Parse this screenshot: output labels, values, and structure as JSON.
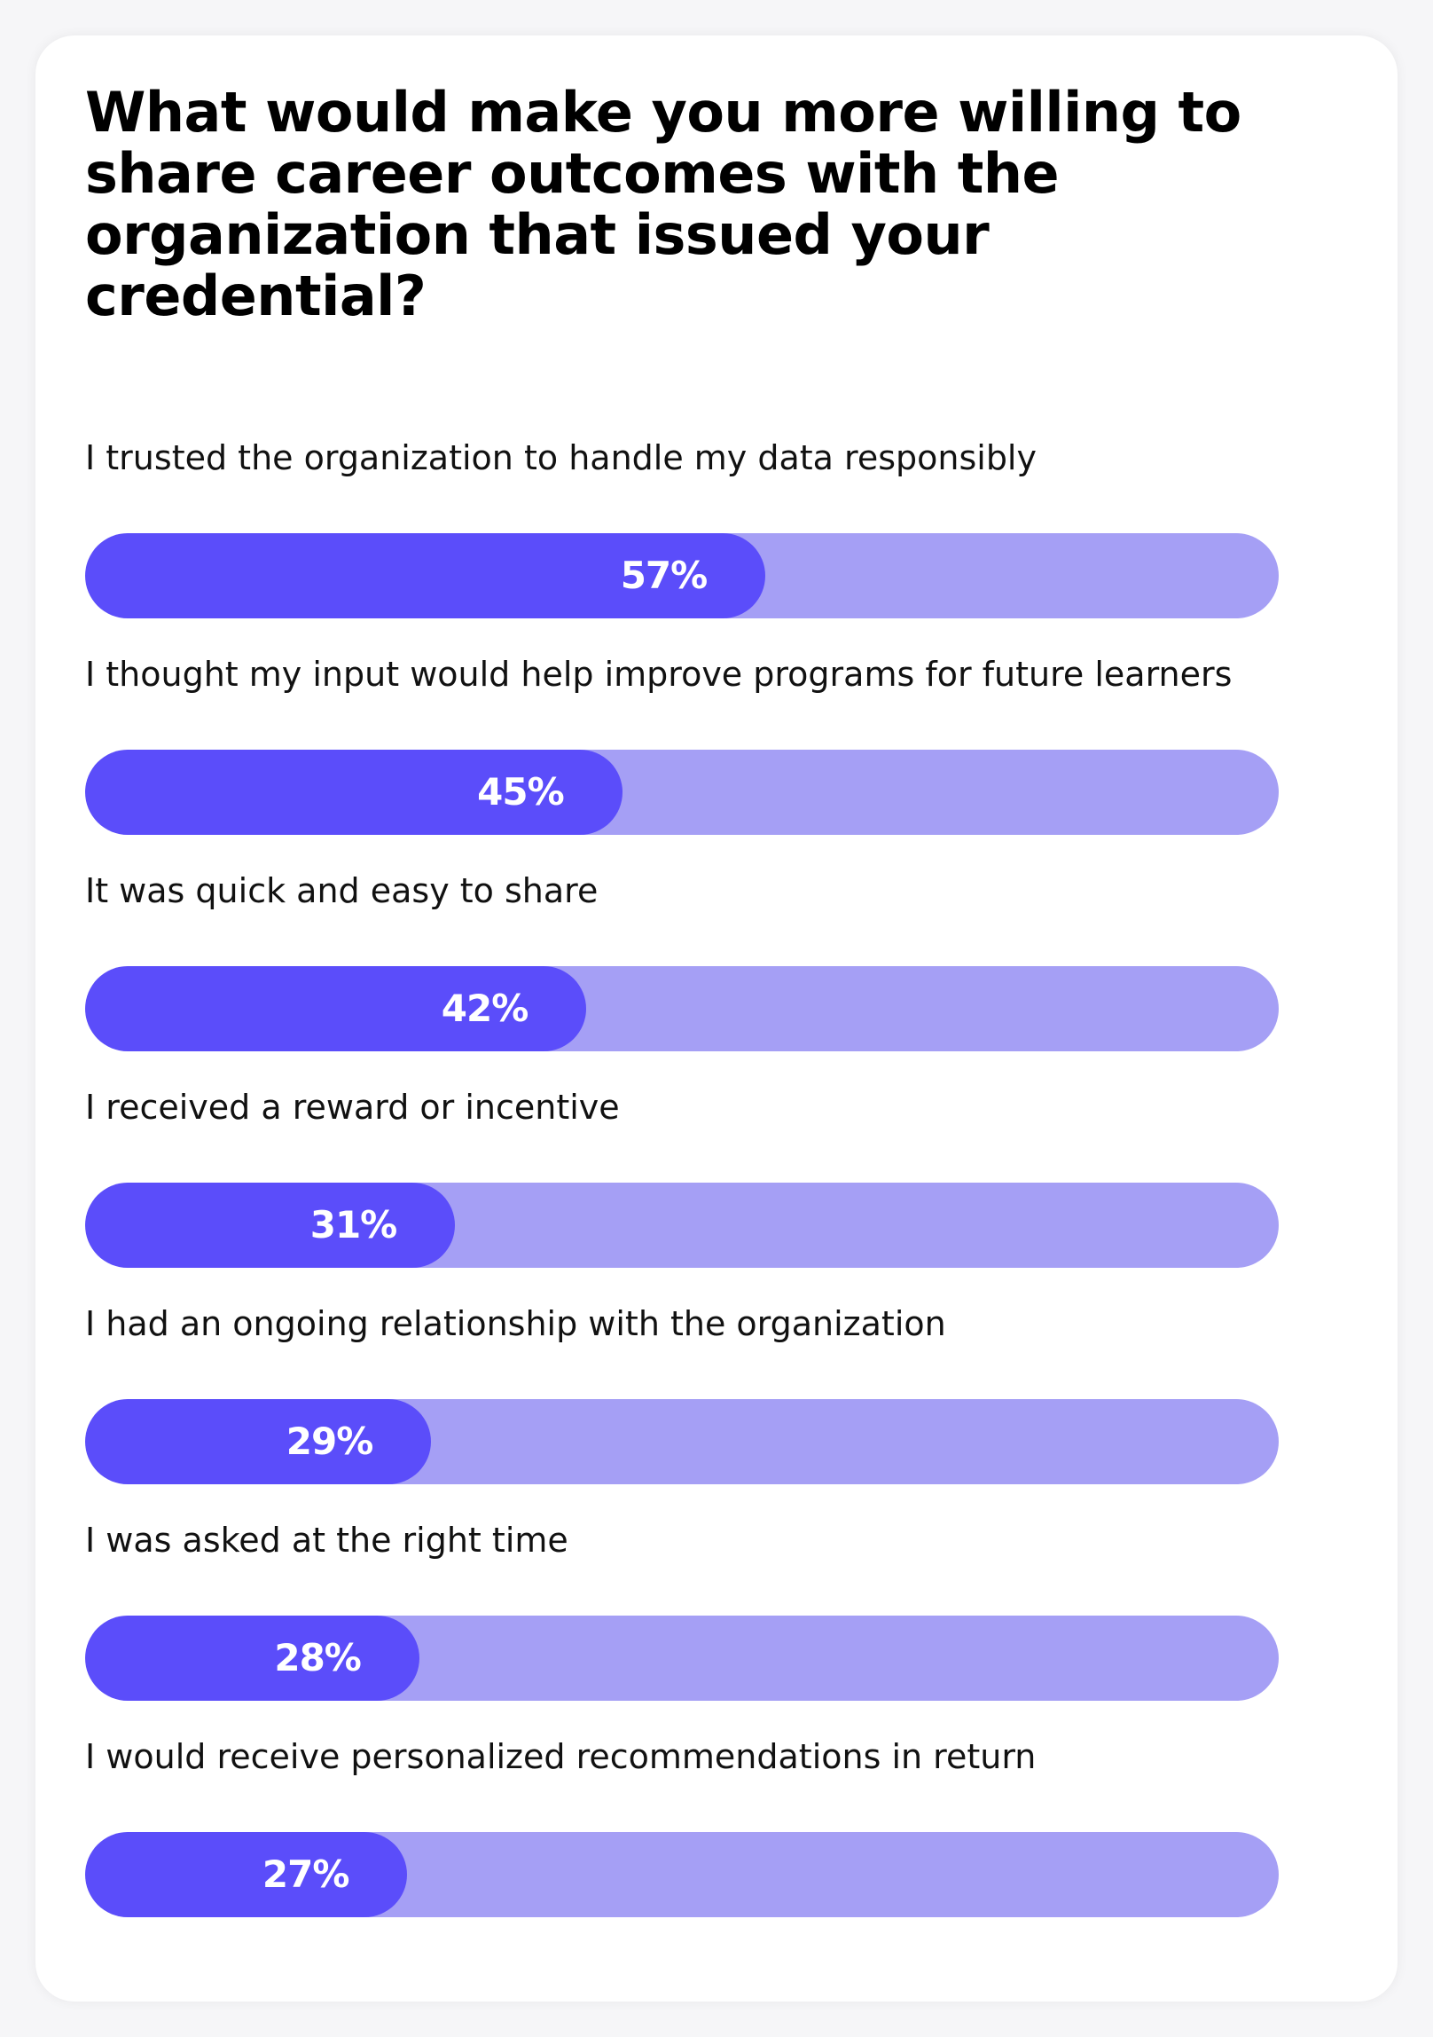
{
  "chart_data": {
    "type": "bar",
    "orientation": "horizontal",
    "title": "What would make you more willing to share career outcomes with the organization that issued your credential?",
    "unit": "%",
    "categories": [
      "I trusted the organization to handle my data responsibly",
      "I thought my input would help improve programs for future learners",
      "It was quick and easy to share",
      "I received a reward or incentive",
      "I had an ongoing relationship with the organization",
      "I was asked at the right time",
      "I would receive personalized recommendations in return"
    ],
    "values": [
      57,
      45,
      42,
      31,
      29,
      28,
      27
    ],
    "value_labels": [
      "57%",
      "45%",
      "42%",
      "31%",
      "29%",
      "28%",
      "27%"
    ],
    "xlim": [
      0,
      100
    ],
    "colors": {
      "fill": "#5b4dfa",
      "track": "#a59ff5",
      "value_text": "#ffffff"
    }
  }
}
